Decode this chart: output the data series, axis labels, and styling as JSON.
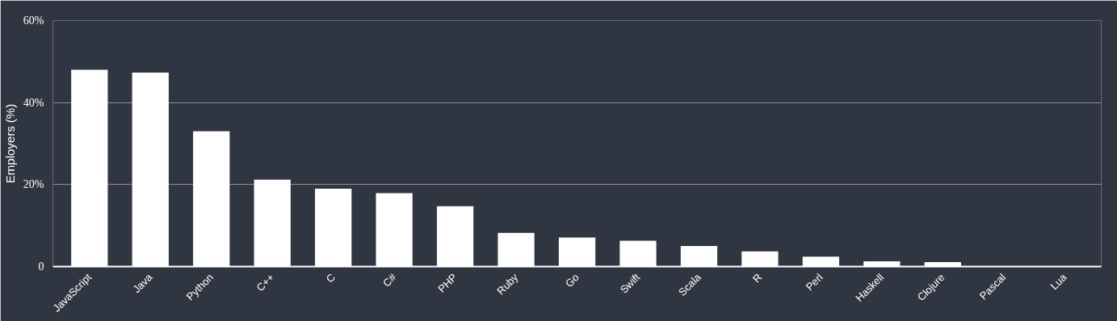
{
  "chart_data": {
    "type": "bar",
    "ylabel": "Employers (%)",
    "categories": [
      "JavaScript",
      "Java",
      "Python",
      "C++",
      "C",
      "C#",
      "PHP",
      "Ruby",
      "Go",
      "Swift",
      "Scala",
      "R",
      "Perl",
      "Haskell",
      "Clojure",
      "Pascal",
      "Lua"
    ],
    "values": [
      48,
      47.3,
      33,
      21.2,
      19,
      17.9,
      14.7,
      8.2,
      7.1,
      6.3,
      5,
      3.7,
      2.4,
      1.3,
      1.1,
      0,
      0
    ],
    "color": "#ffffff",
    "ylim": [
      0,
      60
    ],
    "yticks": [
      {
        "value": 0,
        "label": "0"
      },
      {
        "value": 20,
        "label": "20%"
      },
      {
        "value": 40,
        "label": "40%"
      },
      {
        "value": 60,
        "label": "60%"
      }
    ],
    "grid": "y"
  }
}
